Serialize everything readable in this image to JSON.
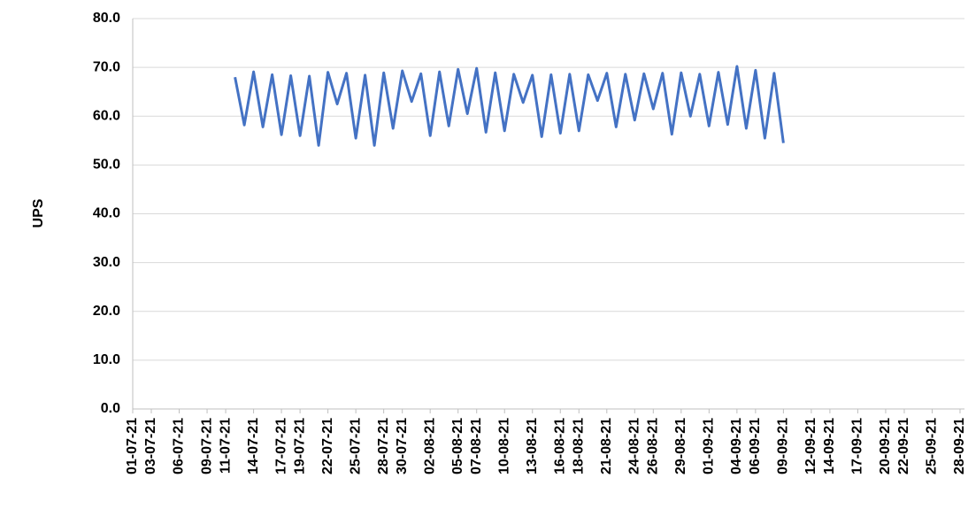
{
  "chart_data": {
    "type": "line",
    "y_label": "UPS",
    "x": [
      "12-07-21",
      "13-07-21",
      "14-07-21",
      "15-07-21",
      "16-07-21",
      "17-07-21",
      "18-07-21",
      "19-07-21",
      "20-07-21",
      "21-07-21",
      "22-07-21",
      "23-07-21",
      "24-07-21",
      "25-07-21",
      "26-07-21",
      "27-07-21",
      "28-07-21",
      "29-07-21",
      "30-07-21",
      "31-07-21",
      "01-08-21",
      "02-08-21",
      "03-08-21",
      "04-08-21",
      "05-08-21",
      "06-08-21",
      "07-08-21",
      "08-08-21",
      "09-08-21",
      "10-08-21",
      "11-08-21",
      "12-08-21",
      "13-08-21",
      "14-08-21",
      "15-08-21",
      "16-08-21",
      "17-08-21",
      "18-08-21",
      "19-08-21",
      "20-08-21",
      "21-08-21",
      "22-08-21",
      "23-08-21",
      "24-08-21",
      "25-08-21",
      "26-08-21",
      "27-08-21",
      "28-08-21",
      "29-08-21",
      "30-08-21",
      "31-08-21",
      "01-09-21",
      "02-09-21",
      "03-09-21",
      "04-09-21",
      "05-09-21",
      "06-09-21",
      "07-09-21",
      "08-09-21",
      "09-09-21"
    ],
    "series": [
      {
        "name": "UPS",
        "color": "#4472c4",
        "values": [
          68.0,
          58.2,
          69.1,
          57.8,
          68.5,
          56.2,
          68.3,
          56.0,
          68.2,
          54.0,
          69.0,
          62.5,
          68.8,
          55.5,
          68.4,
          54.0,
          68.9,
          57.5,
          69.3,
          63.0,
          68.7,
          56.0,
          69.1,
          58.0,
          69.6,
          60.5,
          69.8,
          56.7,
          68.9,
          57.0,
          68.6,
          62.8,
          68.4,
          55.8,
          68.5,
          56.5,
          68.6,
          57.0,
          68.5,
          63.2,
          68.8,
          57.8,
          68.6,
          59.2,
          68.7,
          61.5,
          68.8,
          56.3,
          68.9,
          60.0,
          68.6,
          58.0,
          69.0,
          58.3,
          70.2,
          57.5,
          69.4,
          55.5,
          68.8,
          54.5
        ]
      }
    ],
    "xlim": [
      "01-07-21",
      "28-09-21"
    ],
    "xticks": [
      "01-07-21",
      "03-07-21",
      "06-07-21",
      "09-07-21",
      "11-07-21",
      "14-07-21",
      "17-07-21",
      "19-07-21",
      "22-07-21",
      "25-07-21",
      "28-07-21",
      "30-07-21",
      "02-08-21",
      "05-08-21",
      "07-08-21",
      "10-08-21",
      "13-08-21",
      "16-08-21",
      "18-08-21",
      "21-08-21",
      "24-08-21",
      "26-08-21",
      "29-08-21",
      "01-09-21",
      "04-09-21",
      "06-09-21",
      "09-09-21",
      "12-09-21",
      "14-09-21",
      "17-09-21",
      "20-09-21",
      "22-09-21",
      "25-09-21",
      "28-09-21"
    ],
    "ylim": [
      0,
      80
    ],
    "yticks": [
      {
        "value": 0,
        "label": "0.0"
      },
      {
        "value": 10,
        "label": "10.0"
      },
      {
        "value": 20,
        "label": "20.0"
      },
      {
        "value": 30,
        "label": "30.0"
      },
      {
        "value": 40,
        "label": "40.0"
      },
      {
        "value": 50,
        "label": "50.0"
      },
      {
        "value": 60,
        "label": "60.0"
      },
      {
        "value": 70,
        "label": "70.0"
      },
      {
        "value": 80,
        "label": "80.0"
      }
    ],
    "grid": true
  }
}
